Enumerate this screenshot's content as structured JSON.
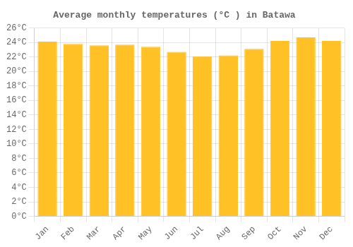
{
  "chart_data": {
    "type": "bar",
    "title": "Average monthly temperatures (°C ) in Batawa",
    "categories": [
      "Jan",
      "Feb",
      "Mar",
      "Apr",
      "May",
      "Jun",
      "Jul",
      "Aug",
      "Sep",
      "Oct",
      "Nov",
      "Dec"
    ],
    "values": [
      24.1,
      23.8,
      23.6,
      23.7,
      23.4,
      22.7,
      22.1,
      22.2,
      23.1,
      24.2,
      24.7,
      24.2
    ],
    "color": "#FFC125",
    "ylim": [
      0,
      26
    ],
    "yticks": [
      {
        "value": 0,
        "label": "0°C"
      },
      {
        "value": 2,
        "label": "2°C"
      },
      {
        "value": 4,
        "label": "4°C"
      },
      {
        "value": 6,
        "label": "6°C"
      },
      {
        "value": 8,
        "label": "8°C"
      },
      {
        "value": 10,
        "label": "10°C"
      },
      {
        "value": 12,
        "label": "12°C"
      },
      {
        "value": 14,
        "label": "14°C"
      },
      {
        "value": 16,
        "label": "16°C"
      },
      {
        "value": 18,
        "label": "18°C"
      },
      {
        "value": 20,
        "label": "20°C"
      },
      {
        "value": 22,
        "label": "22°C"
      },
      {
        "value": 24,
        "label": "24°C"
      },
      {
        "value": 26,
        "label": "26°C"
      }
    ],
    "grid": true
  }
}
